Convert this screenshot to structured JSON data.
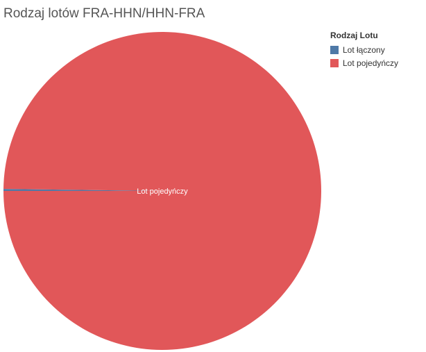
{
  "chart_data": {
    "type": "pie",
    "title": "Rodzaj lotów FRA-HHN/HHN-FRA",
    "legend_title": "Rodzaj Lotu",
    "legend_position": "top-right",
    "slices": [
      {
        "name": "Lot łączony",
        "value": 0.2,
        "color": "#4e79a7"
      },
      {
        "name": "Lot pojedyńczy",
        "value": 99.8,
        "color": "#e15759"
      }
    ],
    "slice_labels": [
      {
        "slice": "Lot pojedyńczy",
        "text": "Lot pojedyńczy"
      }
    ]
  }
}
